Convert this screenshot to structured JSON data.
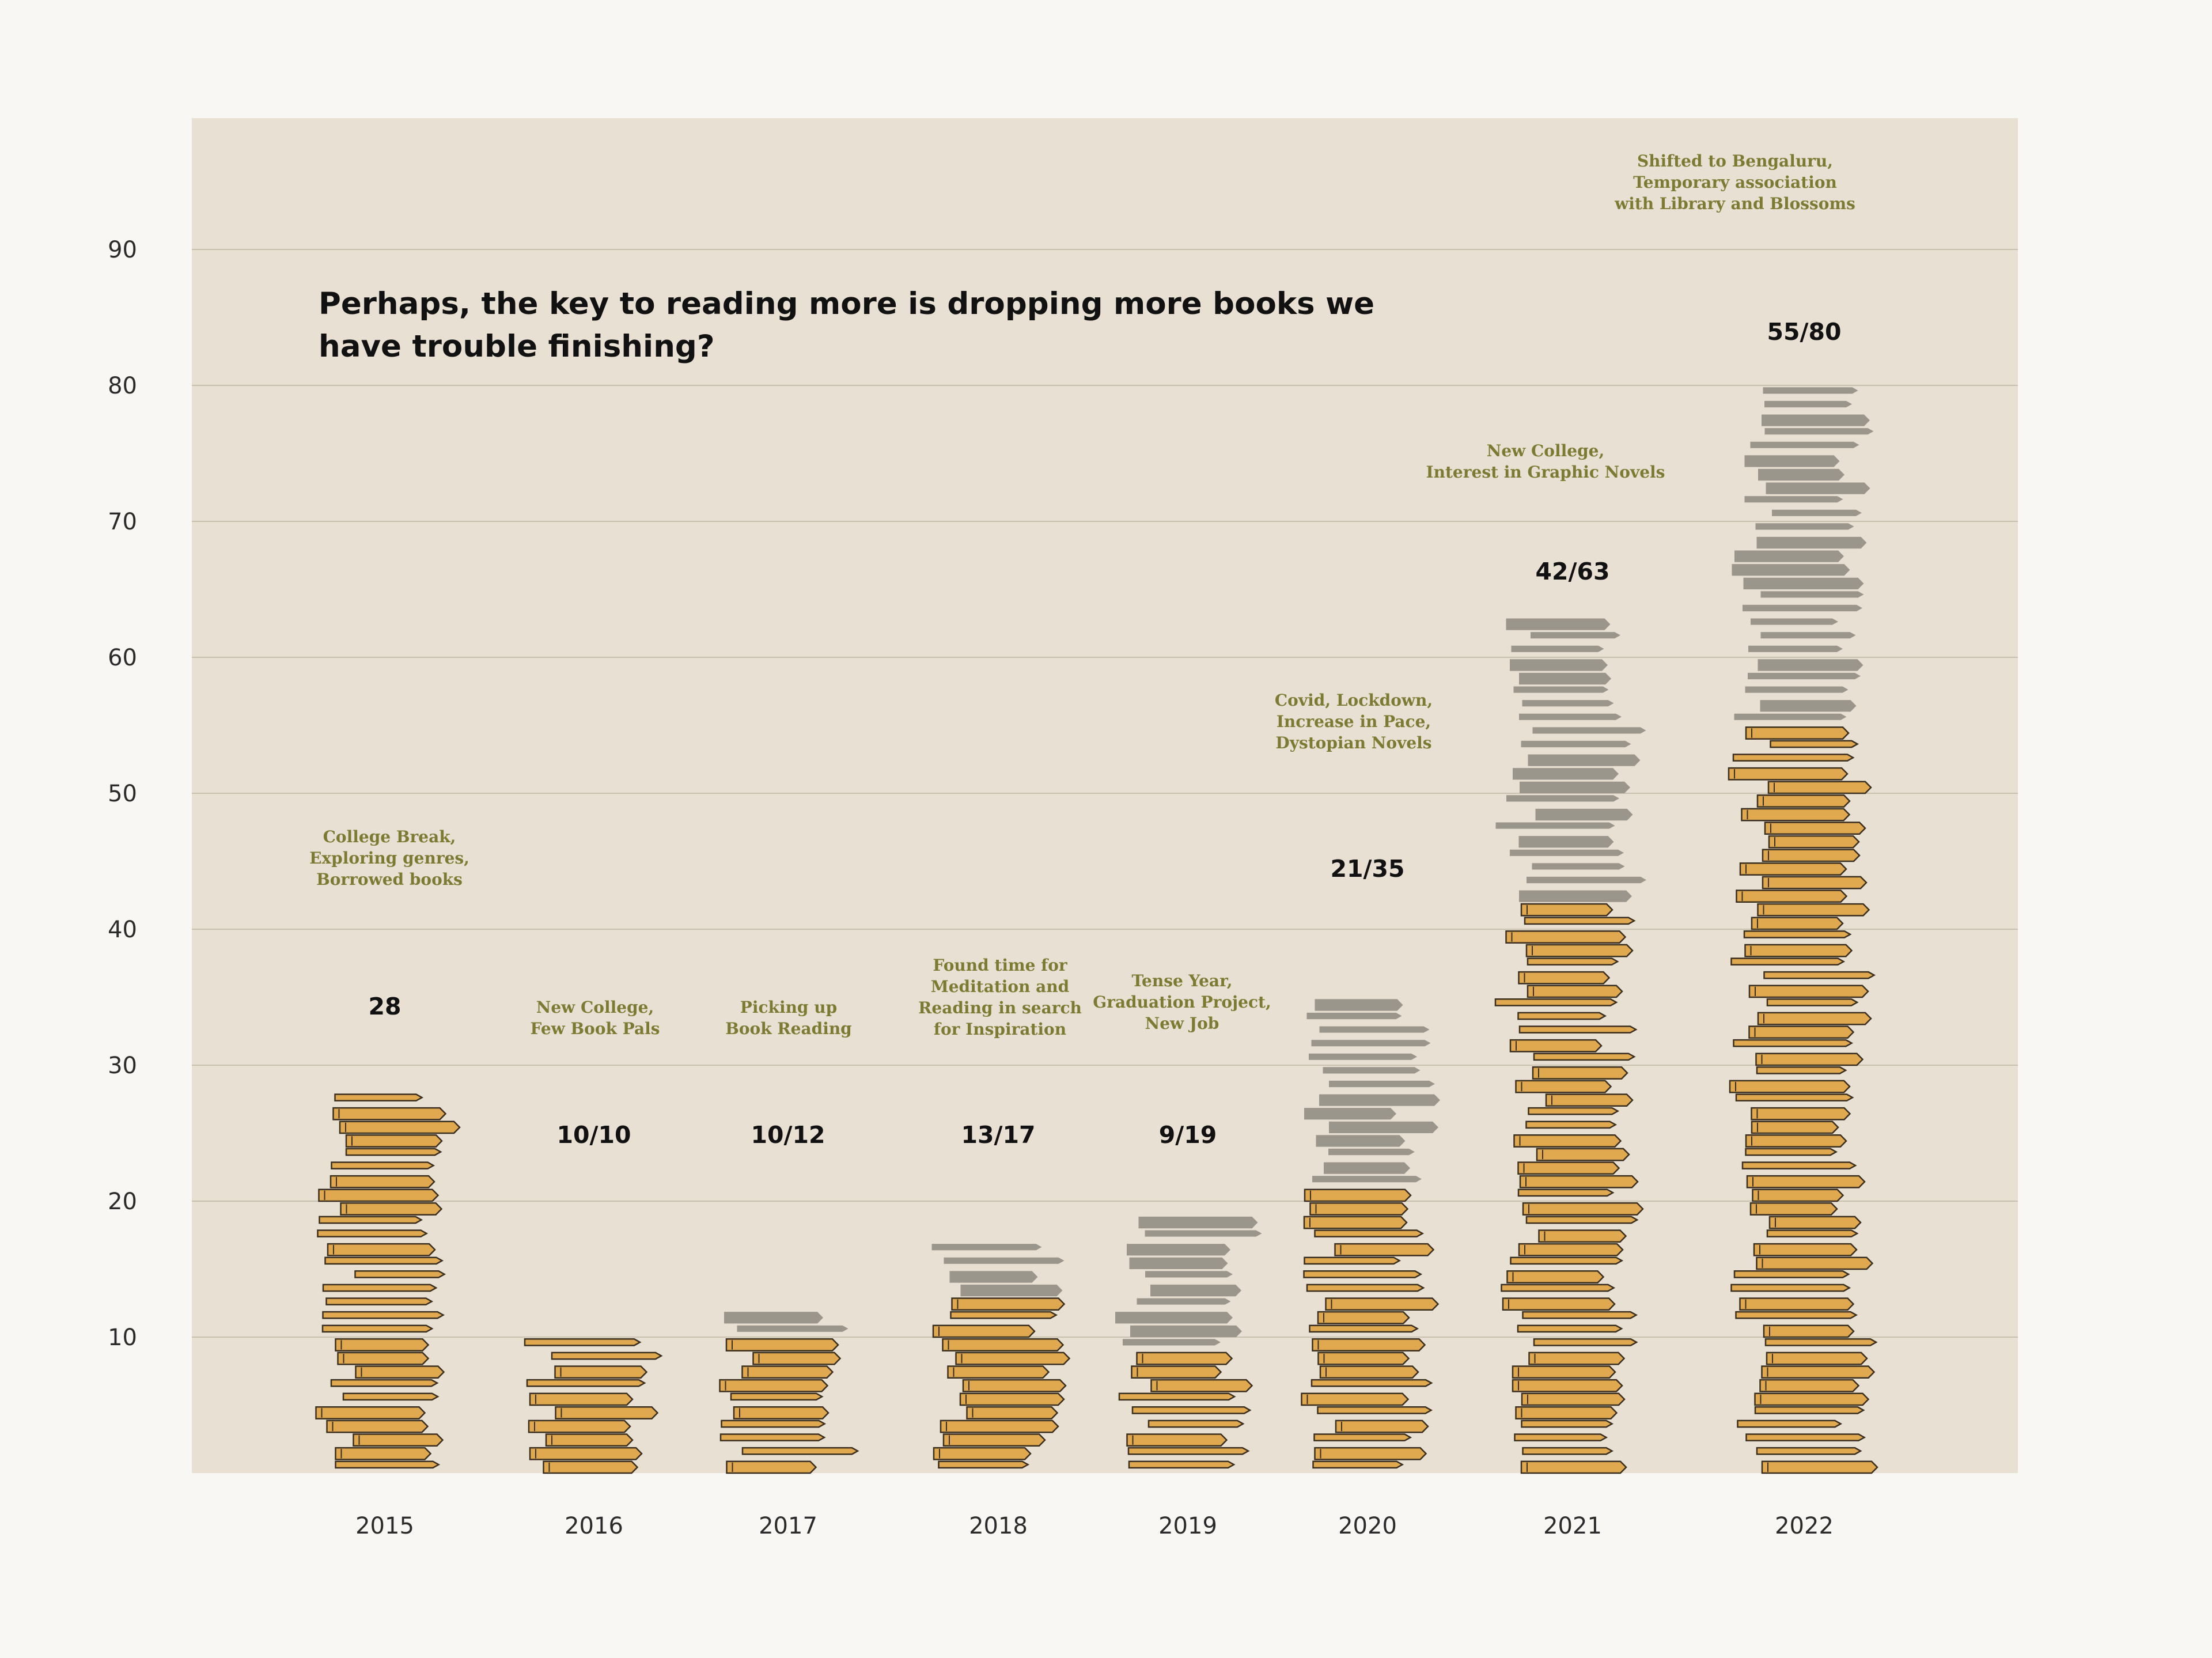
{
  "chart_data": {
    "type": "bar",
    "title": "Perhaps, the key to reading more is dropping more books we have trouble finishing?",
    "xlabel": "",
    "ylabel": "",
    "ylim": [
      0,
      100
    ],
    "yticks": [
      10,
      20,
      30,
      40,
      50,
      60,
      70,
      80,
      90
    ],
    "grid": true,
    "stacked": true,
    "categories": [
      "2015",
      "2016",
      "2017",
      "2018",
      "2019",
      "2020",
      "2021",
      "2022"
    ],
    "series": [
      {
        "values": [
          28,
          10,
          10,
          13,
          9,
          21,
          42,
          55
        ],
        "color": "#e0a84f"
      },
      {
        "values": [
          0,
          0,
          2,
          4,
          10,
          14,
          21,
          25
        ],
        "color": "#9b968b"
      }
    ],
    "labels": [
      "28",
      "10/10",
      "10/12",
      "13/17",
      "9/19",
      "21/35",
      "42/63",
      "55/80"
    ],
    "annotations": [
      [
        "College Break,",
        "Exploring genres,",
        "Borrowed books"
      ],
      [
        "New College,",
        "Few Book Pals"
      ],
      [
        "Picking up",
        "Book Reading"
      ],
      [
        "Found time for",
        "Meditation and",
        "Reading in search",
        "for Inspiration"
      ],
      [
        "Tense Year,",
        "Graduation Project,",
        "New Job"
      ],
      [
        "Covid, Lockdown,",
        "Increase in Pace,",
        "Dystopian Novels"
      ],
      [
        "New College,",
        "Interest in Graphic Novels"
      ],
      [
        "Shifted to Bengaluru,",
        "Temporary association",
        "with Library and Blossoms"
      ]
    ]
  }
}
